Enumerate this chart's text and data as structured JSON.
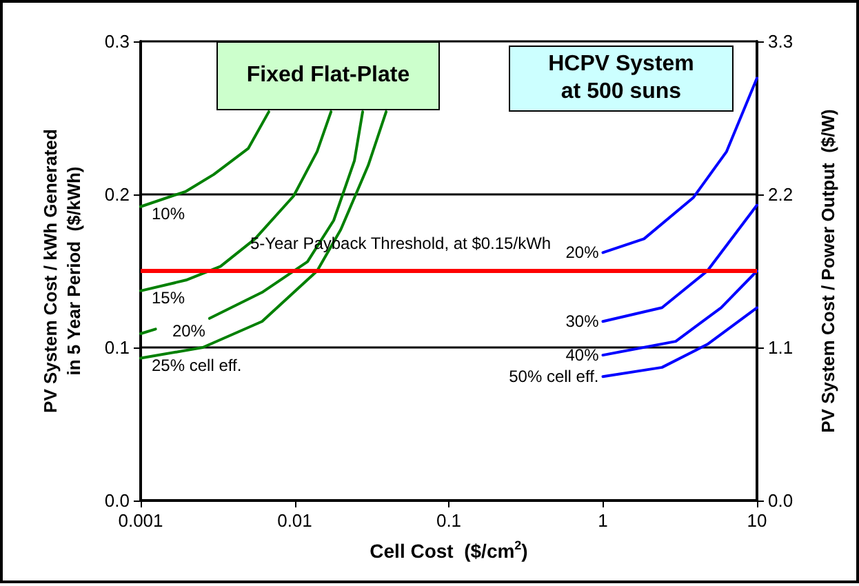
{
  "chart_data": {
    "type": "line",
    "xlabel": "Cell Cost  ($/cm$^{2}$)",
    "ylabel": "PV System Cost / kWh Generated\nin 5 Year Period  ($/kWh)",
    "y2label": "PV System Cost / Power Output  ($/W)",
    "annotations": [
      "Fixed Flat-Plate",
      "HCPV System\nat 500 suns"
    ],
    "log": "x",
    "grid": "y",
    "marker": "none",
    "line_style": "solid",
    "xlim": [
      0.001,
      10
    ],
    "xticks": [
      0.001,
      0.01,
      0.1,
      1,
      10
    ],
    "ylim": [
      0,
      0.3
    ],
    "yticks": [
      {
        "value": 0,
        "label": "0.0"
      },
      0.1,
      0.2,
      0.3
    ],
    "y2lim": [
      0,
      3.3
    ],
    "y2ticks": [
      {
        "value": 0,
        "label": "0.0"
      },
      1.1,
      2.2,
      3.3
    ],
    "ref_lines": [
      {
        "axis": "y",
        "value": 0.15,
        "label": "5-Year Payback Threshold, at $0.15/kWh",
        "color": "#ff0000"
      }
    ],
    "series": [
      {
        "name": "10%",
        "color": "#008000",
        "x": [
          0.001,
          0.00197,
          0.00298,
          0.00499,
          0.00679
        ],
        "values": [
          0.192,
          0.202,
          0.213,
          0.23,
          0.254
        ]
      },
      {
        "name": "15%",
        "color": "#008000",
        "x": [
          0.001,
          0.00197,
          0.0033,
          0.00553,
          0.00984,
          0.01397,
          0.0172
        ],
        "values": [
          0.137,
          0.144,
          0.153,
          0.171,
          0.199,
          0.228,
          0.254
        ]
      },
      {
        "name": "20%",
        "color": "#008000",
        "x": [
          0.001,
          0.00125,
          0.002,
          0.0028,
          0.00614,
          0.0121,
          0.0179,
          0.0244,
          0.0276
        ],
        "values": [
          0.109,
          0.112,
          null,
          0.119,
          0.136,
          0.156,
          0.183,
          0.222,
          0.254
        ]
      },
      {
        "name": "25% cell eff.",
        "color": "#008000",
        "x": [
          0.001,
          0.00253,
          0.00614,
          0.01397,
          0.0199,
          0.03,
          0.0392
        ],
        "values": [
          0.093,
          0.1,
          0.117,
          0.15,
          0.177,
          0.219,
          0.254
        ]
      },
      {
        "name": "20%",
        "color": "#0000ff",
        "x": [
          1,
          1.85,
          3.87,
          6.35,
          10
        ],
        "values": [
          0.162,
          0.171,
          0.198,
          0.228,
          0.276
        ]
      },
      {
        "name": "30%",
        "color": "#0000ff",
        "x": [
          1,
          2.42,
          4.76,
          10
        ],
        "values": [
          0.117,
          0.126,
          0.15,
          0.193
        ]
      },
      {
        "name": "40%",
        "color": "#0000ff",
        "x": [
          1,
          2.97,
          5.85,
          10
        ],
        "values": [
          0.095,
          0.104,
          0.126,
          0.15
        ]
      },
      {
        "name": "50% cell eff.",
        "color": "#0000ff",
        "x": [
          1,
          2.42,
          4.76,
          10
        ],
        "values": [
          0.081,
          0.087,
          0.102,
          0.126
        ]
      }
    ]
  }
}
